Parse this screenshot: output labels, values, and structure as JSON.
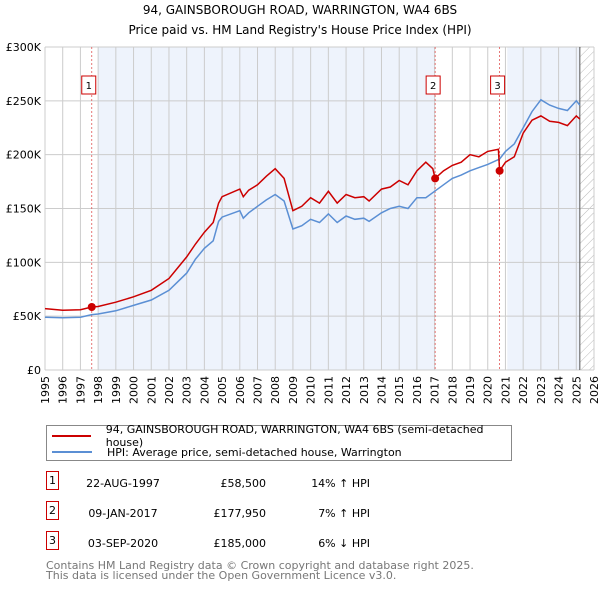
{
  "chart_data": {
    "type": "line",
    "title": "94, GAINSBOROUGH ROAD, WARRINGTON, WA4 6BS",
    "subtitle": "Price paid vs. HM Land Registry's House Price Index (HPI)",
    "xlim": [
      1995,
      2026
    ],
    "ylim": [
      0,
      300000
    ],
    "x_ticks": [
      "1995",
      "1996",
      "1997",
      "1998",
      "1999",
      "2000",
      "2001",
      "2002",
      "2003",
      "2004",
      "2005",
      "2006",
      "2007",
      "2008",
      "2009",
      "2010",
      "2011",
      "2012",
      "2013",
      "2014",
      "2015",
      "2016",
      "2017",
      "2018",
      "2019",
      "2020",
      "2021",
      "2022",
      "2023",
      "2024",
      "2025",
      "2026"
    ],
    "y_ticks": [
      {
        "v": 0,
        "label": "£0"
      },
      {
        "v": 50000,
        "label": "£50K"
      },
      {
        "v": 100000,
        "label": "£100K"
      },
      {
        "v": 150000,
        "label": "£150K"
      },
      {
        "v": 200000,
        "label": "£200K"
      },
      {
        "v": 250000,
        "label": "£250K"
      },
      {
        "v": 300000,
        "label": "£300K"
      }
    ],
    "grid": true,
    "colors": {
      "property": "#cc0000",
      "hpi": "#5b8fd4",
      "shade": "#eef3fc"
    },
    "series": [
      {
        "name": "94, GAINSBOROUGH ROAD, WARRINGTON, WA4 6BS (semi-detached house)",
        "key": "property",
        "x": [
          1995,
          1996,
          1997,
          1997.64,
          1998,
          1999,
          2000,
          2001,
          2002,
          2003,
          2003.5,
          2004,
          2004.5,
          2004.8,
          2005,
          2006,
          2006.2,
          2006.5,
          2007,
          2007.5,
          2008,
          2008.5,
          2009,
          2009.5,
          2010,
          2010.5,
          2011,
          2011.5,
          2012,
          2012.5,
          2013,
          2013.3,
          2014,
          2014.5,
          2015,
          2015.5,
          2016,
          2016.5,
          2016.9,
          2017.03,
          2017.5,
          2018,
          2018.5,
          2019,
          2019.5,
          2020,
          2020.6,
          2020.67,
          2021,
          2021.5,
          2022,
          2022.5,
          2023,
          2023.5,
          2024,
          2024.5,
          2025,
          2025.2
        ],
        "values": [
          57000,
          55500,
          56000,
          58500,
          59000,
          63000,
          68000,
          74000,
          85000,
          105000,
          117000,
          128000,
          137000,
          155000,
          161000,
          168000,
          161000,
          167000,
          172000,
          180000,
          187000,
          178000,
          148000,
          152000,
          160000,
          155000,
          166000,
          155000,
          163000,
          160000,
          161000,
          157000,
          168000,
          170000,
          176000,
          172000,
          185000,
          193000,
          187000,
          177950,
          185000,
          190000,
          193000,
          200000,
          198000,
          203000,
          205000,
          185000,
          193000,
          198000,
          220000,
          232000,
          236000,
          231000,
          230000,
          227000,
          236000,
          233000
        ]
      },
      {
        "name": "HPI: Average price, semi-detached house, Warrington",
        "key": "hpi",
        "x": [
          1995,
          1996,
          1997,
          1997.64,
          1998,
          1999,
          2000,
          2001,
          2002,
          2003,
          2003.5,
          2004,
          2004.5,
          2004.8,
          2005,
          2006,
          2006.2,
          2006.5,
          2007,
          2007.5,
          2008,
          2008.5,
          2009,
          2009.5,
          2010,
          2010.5,
          2011,
          2011.5,
          2012,
          2012.5,
          2013,
          2013.3,
          2014,
          2014.5,
          2015,
          2015.5,
          2016,
          2016.5,
          2017,
          2017.5,
          2018,
          2018.5,
          2019,
          2019.5,
          2020,
          2020.67,
          2021,
          2021.5,
          2022,
          2022.5,
          2023,
          2023.5,
          2024,
          2024.5,
          2025,
          2025.2
        ],
        "values": [
          49000,
          48500,
          49000,
          51500,
          52000,
          55000,
          60000,
          65000,
          74000,
          90000,
          103000,
          113000,
          120000,
          138000,
          142000,
          148000,
          141000,
          146000,
          152000,
          158000,
          163000,
          157000,
          131000,
          134000,
          140000,
          137000,
          145000,
          137000,
          143000,
          140000,
          141000,
          138000,
          146000,
          150000,
          152000,
          150000,
          160000,
          160000,
          166000,
          172000,
          178000,
          181000,
          185000,
          188000,
          191000,
          196000,
          203000,
          210000,
          225000,
          240000,
          251000,
          246000,
          243000,
          241000,
          250000,
          246000
        ]
      }
    ],
    "sales": [
      {
        "label": "1",
        "x": 1997.64,
        "value": 58500,
        "date": "22-AUG-1997",
        "price": "£58,500",
        "hpi": "14% ↑ HPI"
      },
      {
        "label": "2",
        "x": 2017.03,
        "value": 177950,
        "date": "09-JAN-2017",
        "price": "£177,950",
        "hpi": "7% ↑ HPI"
      },
      {
        "label": "3",
        "x": 2020.67,
        "value": 185000,
        "date": "03-SEP-2020",
        "price": "£185,000",
        "hpi": "6% ↓ HPI"
      }
    ],
    "shaded_ranges": [
      [
        1998,
        2017.03
      ],
      [
        2021.1,
        2025.2
      ]
    ],
    "forecast_from": 2025.2
  },
  "legend": {
    "property": "94, GAINSBOROUGH ROAD, WARRINGTON, WA4 6BS (semi-detached house)",
    "hpi": "HPI: Average price, semi-detached house, Warrington"
  },
  "footer": {
    "line1": "Contains HM Land Registry data © Crown copyright and database right 2025.",
    "line2": "This data is licensed under the Open Government Licence v3.0."
  }
}
